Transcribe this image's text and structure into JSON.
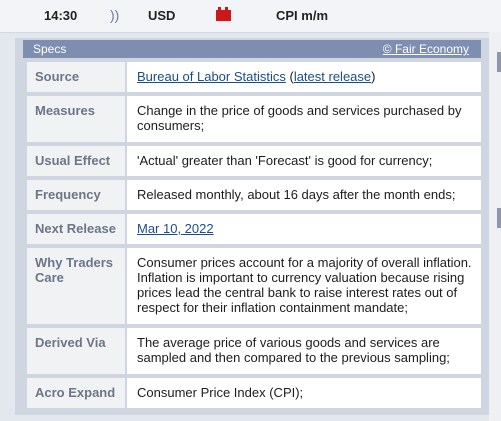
{
  "event": {
    "time": "14:30",
    "indicator_glyph": "))",
    "currency": "USD",
    "impact_icon": "high-impact-folder-icon",
    "impact_color": "#cc1818",
    "title": "CPI m/m"
  },
  "specs_panel": {
    "title": "Specs",
    "credit": "© Fair Economy",
    "rows": [
      {
        "label": "Source",
        "link": "Bureau of Labor Statistics",
        "pre": " (",
        "link2": "latest release",
        "post": ")"
      },
      {
        "label": "Measures",
        "value": "Change in the price of goods and services purchased by consumers;"
      },
      {
        "label": "Usual Effect",
        "value": "'Actual' greater than 'Forecast' is good for currency;"
      },
      {
        "label": "Frequency",
        "value": "Released monthly, about 16 days after the month ends;"
      },
      {
        "label": "Next Release",
        "link": "Mar 10, 2022"
      },
      {
        "label": "Why Traders Care",
        "value": "Consumer prices account for a majority of overall inflation. Inflation is important to currency valuation because rising prices lead the central bank to raise interest rates out of respect for their inflation containment mandate;"
      },
      {
        "label": "Derived Via",
        "value": "The average price of various goods and services are sampled and then compared to the previous sampling;"
      },
      {
        "label": "Acro Expand",
        "value": "Consumer Price Index (CPI);"
      }
    ]
  }
}
